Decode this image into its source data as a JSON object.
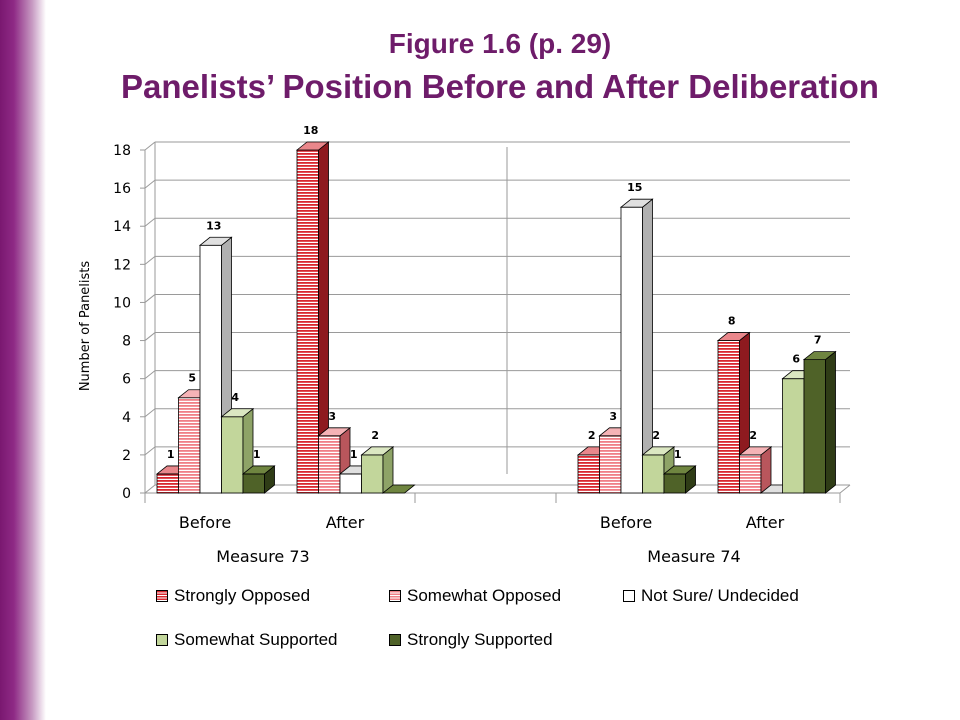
{
  "page": {
    "title_line1": "Figure 1.6 (p. 29)",
    "title_line2": "Panelists’ Position Before and After Deliberation"
  },
  "colors": {
    "title": "#6e1c6a",
    "sidebar": "#7a1870",
    "strongly_opposed": "#d9262e",
    "somewhat_opposed": "#f07f86",
    "not_sure": "#ffffff",
    "somewhat_supported": "#c2d69b",
    "strongly_supported": "#4f6228"
  },
  "chart_data": {
    "type": "bar",
    "style": "3d-clustered-column",
    "ylabel": "Number of Panelists",
    "ylim": [
      0,
      18
    ],
    "yticks": [
      0,
      2,
      4,
      6,
      8,
      10,
      12,
      14,
      16,
      18
    ],
    "grid": true,
    "legend_position": "bottom",
    "groups": [
      {
        "label": "Measure 73",
        "categories": [
          "Before",
          "After"
        ]
      },
      {
        "label": "Measure 74",
        "categories": [
          "Before",
          "After"
        ]
      }
    ],
    "categories": [
      "Before",
      "After",
      "Before",
      "After"
    ],
    "series": [
      {
        "name": "Strongly Opposed",
        "values": [
          1,
          18,
          2,
          8
        ],
        "labels": [
          "1",
          "18",
          "2",
          "8"
        ]
      },
      {
        "name": "Somewhat Opposed",
        "values": [
          5,
          3,
          3,
          2
        ],
        "labels": [
          "5",
          "3",
          "3",
          "2"
        ]
      },
      {
        "name": "Not Sure/ Undecided",
        "values": [
          13,
          1,
          15,
          0
        ],
        "labels": [
          "13",
          "1",
          "15",
          ""
        ]
      },
      {
        "name": "Somewhat Supported",
        "values": [
          4,
          2,
          2,
          6
        ],
        "labels": [
          "4",
          "2",
          "2",
          "6"
        ]
      },
      {
        "name": "Strongly Supported",
        "values": [
          1,
          0,
          1,
          7
        ],
        "labels": [
          "1",
          "",
          "1",
          "7"
        ]
      }
    ]
  }
}
